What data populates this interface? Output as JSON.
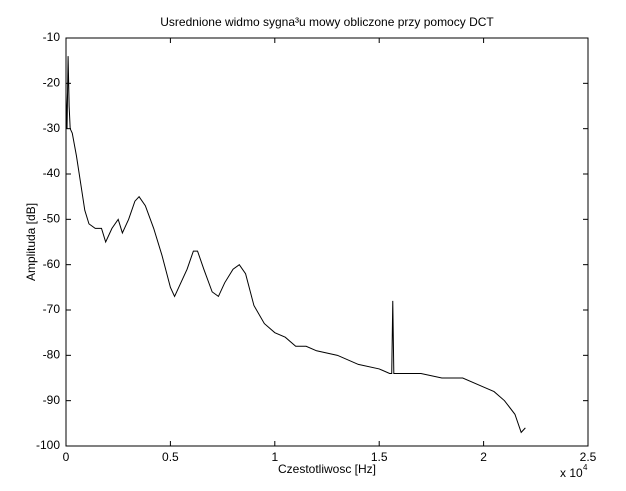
{
  "chart_data": {
    "type": "line",
    "title": "Usrednione widmo sygna³u mowy obliczone przy pomocy DCT",
    "x_label": "Czestotliwosc [Hz]",
    "y_label": "Amplituda [dB]",
    "x_multiplier": "x 10",
    "x_multiplier_exponent": "4",
    "x": [
      0,
      0.005,
      0.01,
      0.015,
      0.02,
      0.03,
      0.05,
      0.07,
      0.09,
      0.11,
      0.14,
      0.17,
      0.19,
      0.22,
      0.25,
      0.27,
      0.3,
      0.33,
      0.35,
      0.38,
      0.42,
      0.46,
      0.5,
      0.52,
      0.55,
      0.58,
      0.61,
      0.63,
      0.66,
      0.7,
      0.73,
      0.76,
      0.8,
      0.83,
      0.86,
      0.9,
      0.95,
      1.0,
      1.05,
      1.1,
      1.15,
      1.2,
      1.3,
      1.4,
      1.5,
      1.55,
      1.56,
      1.565,
      1.57,
      1.6,
      1.7,
      1.8,
      1.9,
      2.0,
      2.05,
      2.1,
      2.15,
      2.18,
      2.2
    ],
    "series": [
      {
        "color": "#000000",
        "values": [
          -22,
          -30,
          -14,
          -25,
          -30,
          -31,
          -36,
          -42,
          -48,
          -51,
          -52,
          -52,
          -55,
          -52,
          -50,
          -53,
          -50,
          -46,
          -45,
          -47,
          -52,
          -58,
          -65,
          -67,
          -64,
          -61,
          -57,
          -57,
          -61,
          -66,
          -67,
          -64,
          -61,
          -60,
          -62,
          -69,
          -73,
          -75,
          -76,
          -78,
          -78,
          -79,
          -80,
          -82,
          -83,
          -84,
          -84,
          -68,
          -84,
          -84,
          -84,
          -85,
          -85,
          -87,
          -88,
          -90,
          -93,
          -97,
          -96
        ]
      }
    ],
    "xlim": [
      0,
      2.5
    ],
    "xticks": [
      0,
      0.5,
      1,
      1.5,
      2,
      2.5
    ],
    "ylim": [
      -100,
      -10
    ],
    "yticks": [
      -100,
      -90,
      -80,
      -70,
      -60,
      -50,
      -40,
      -30,
      -20,
      -10
    ]
  }
}
